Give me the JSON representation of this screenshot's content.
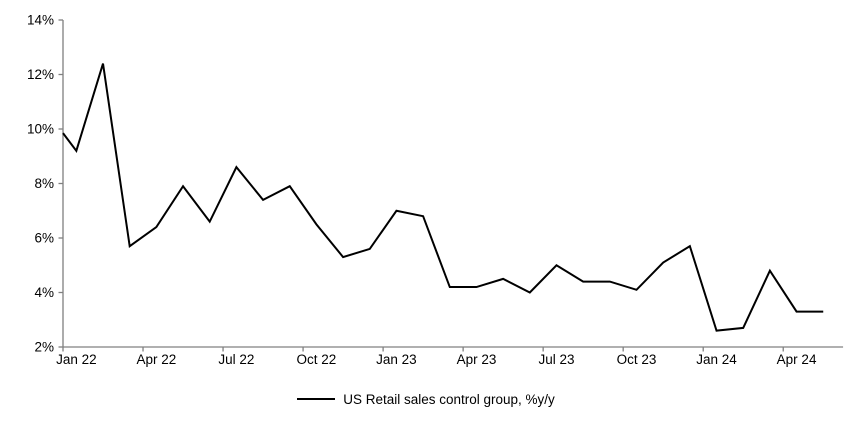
{
  "chart_data": {
    "type": "line",
    "title": "",
    "categories": [
      "Jan 22",
      "Feb 22",
      "Mar 22",
      "Apr 22",
      "May 22",
      "Jun 22",
      "Jul 22",
      "Aug 22",
      "Sep 22",
      "Oct 22",
      "Nov 22",
      "Dec 22",
      "Jan 23",
      "Feb 23",
      "Mar 23",
      "Apr 23",
      "May 23",
      "Jun 23",
      "Jul 23",
      "Aug 23",
      "Sep 23",
      "Oct 23",
      "Nov 23",
      "Dec 23",
      "Jan 24",
      "Feb 24",
      "Mar 24",
      "Apr 24",
      "May 24"
    ],
    "series": [
      {
        "name": "US Retail sales control group, %y/y",
        "color": "#000000",
        "values": [
          9.2,
          12.4,
          5.7,
          6.4,
          7.9,
          6.6,
          8.6,
          7.4,
          7.9,
          6.5,
          5.3,
          5.6,
          7.0,
          6.8,
          4.2,
          4.2,
          4.5,
          4.0,
          5.0,
          4.4,
          4.4,
          4.1,
          5.1,
          5.7,
          2.6,
          2.7,
          4.8,
          3.3,
          3.3
        ]
      }
    ],
    "edge_start_value": 9.85,
    "ylim": [
      2,
      14
    ],
    "y_tick_step": 2,
    "y_tick_labels": [
      "14%",
      "12%",
      "10%",
      "8%",
      "6%",
      "4%",
      "2%"
    ],
    "x_tick_labels": [
      "Jan 22",
      "Apr 22",
      "Jul 22",
      "Oct 22",
      "Jan 23",
      "Apr 23",
      "Jul 23",
      "Oct 23",
      "Jan 24",
      "Apr 24"
    ],
    "x_tick_every": 3,
    "grid": false,
    "legend_position": "bottom-center",
    "axis_color": "#808080",
    "background": "#ffffff"
  }
}
